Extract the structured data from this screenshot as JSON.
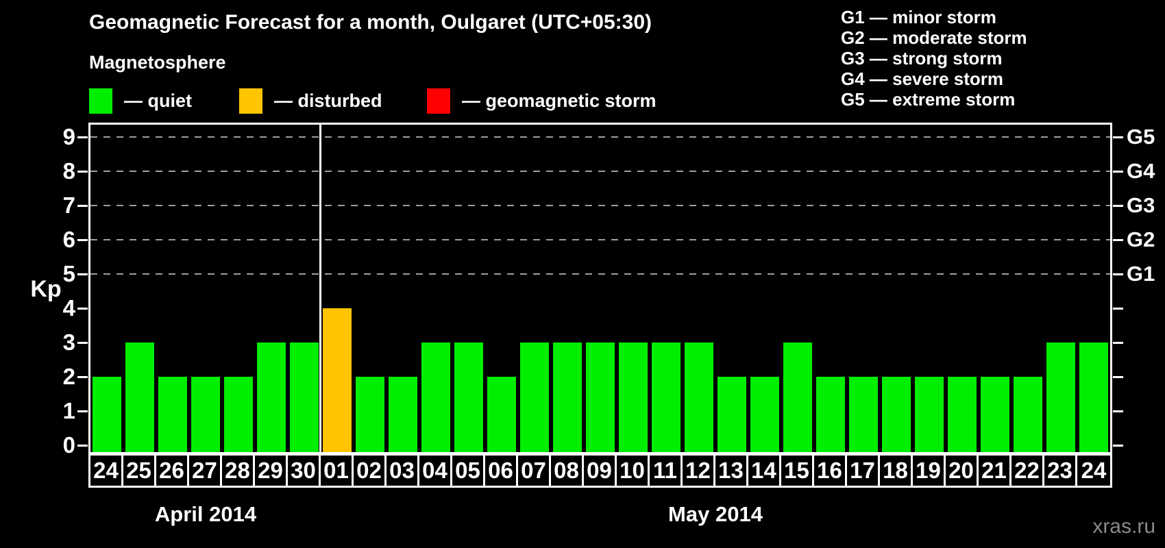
{
  "title": "Geomagnetic Forecast for a month, Oulgaret (UTC+05:30)",
  "subtitle": "Magnetosphere",
  "legend": {
    "items": [
      {
        "key": "quiet",
        "label": "— quiet"
      },
      {
        "key": "disturbed",
        "label": "— disturbed"
      },
      {
        "key": "storm",
        "label": "— geomagnetic storm"
      }
    ]
  },
  "storm_scale_legend": [
    "G1 — minor storm",
    "G2 — moderate storm",
    "G3 — strong storm",
    "G4 — severe storm",
    "G5 — extreme storm"
  ],
  "watermark": "xras.ru",
  "colors": {
    "quiet": "#00ee00",
    "disturbed": "#ffc300",
    "storm": "#ff0000",
    "background": "#000000",
    "axis": "#ffffff",
    "grid": "#9f9f9f",
    "watermark": "#8a8a8a"
  },
  "chart_data": {
    "type": "bar",
    "title": "Geomagnetic Forecast for a month, Oulgaret (UTC+05:30)",
    "ylabel": "Kp",
    "ylim": [
      0,
      9.5
    ],
    "yticks": [
      0,
      1,
      2,
      3,
      4,
      5,
      6,
      7,
      8,
      9
    ],
    "gridlines_at": [
      5,
      6,
      7,
      8,
      9
    ],
    "grid": "dashed horizontal at storm levels only",
    "legend_position": "top",
    "right_axis_labels": [
      {
        "kp": 5,
        "label": "G1"
      },
      {
        "kp": 6,
        "label": "G2"
      },
      {
        "kp": 7,
        "label": "G3"
      },
      {
        "kp": 8,
        "label": "G4"
      },
      {
        "kp": 9,
        "label": "G5"
      }
    ],
    "months": [
      {
        "label": "April 2014",
        "days": 7
      },
      {
        "label": "May 2014",
        "days": 24
      }
    ],
    "series": [
      {
        "name": "Kp forecast",
        "points": [
          {
            "day": "24",
            "value": 2,
            "state": "quiet"
          },
          {
            "day": "25",
            "value": 3,
            "state": "quiet"
          },
          {
            "day": "26",
            "value": 2,
            "state": "quiet"
          },
          {
            "day": "27",
            "value": 2,
            "state": "quiet"
          },
          {
            "day": "28",
            "value": 2,
            "state": "quiet"
          },
          {
            "day": "29",
            "value": 3,
            "state": "quiet"
          },
          {
            "day": "30",
            "value": 3,
            "state": "quiet"
          },
          {
            "day": "01",
            "value": 4,
            "state": "disturbed"
          },
          {
            "day": "02",
            "value": 2,
            "state": "quiet"
          },
          {
            "day": "03",
            "value": 2,
            "state": "quiet"
          },
          {
            "day": "04",
            "value": 3,
            "state": "quiet"
          },
          {
            "day": "05",
            "value": 3,
            "state": "quiet"
          },
          {
            "day": "06",
            "value": 2,
            "state": "quiet"
          },
          {
            "day": "07",
            "value": 3,
            "state": "quiet"
          },
          {
            "day": "08",
            "value": 3,
            "state": "quiet"
          },
          {
            "day": "09",
            "value": 3,
            "state": "quiet"
          },
          {
            "day": "10",
            "value": 3,
            "state": "quiet"
          },
          {
            "day": "11",
            "value": 3,
            "state": "quiet"
          },
          {
            "day": "12",
            "value": 3,
            "state": "quiet"
          },
          {
            "day": "13",
            "value": 2,
            "state": "quiet"
          },
          {
            "day": "14",
            "value": 2,
            "state": "quiet"
          },
          {
            "day": "15",
            "value": 3,
            "state": "quiet"
          },
          {
            "day": "16",
            "value": 2,
            "state": "quiet"
          },
          {
            "day": "17",
            "value": 2,
            "state": "quiet"
          },
          {
            "day": "18",
            "value": 2,
            "state": "quiet"
          },
          {
            "day": "19",
            "value": 2,
            "state": "quiet"
          },
          {
            "day": "20",
            "value": 2,
            "state": "quiet"
          },
          {
            "day": "21",
            "value": 2,
            "state": "quiet"
          },
          {
            "day": "22",
            "value": 2,
            "state": "quiet"
          },
          {
            "day": "23",
            "value": 3,
            "state": "quiet"
          },
          {
            "day": "24",
            "value": 3,
            "state": "quiet"
          }
        ]
      }
    ]
  }
}
